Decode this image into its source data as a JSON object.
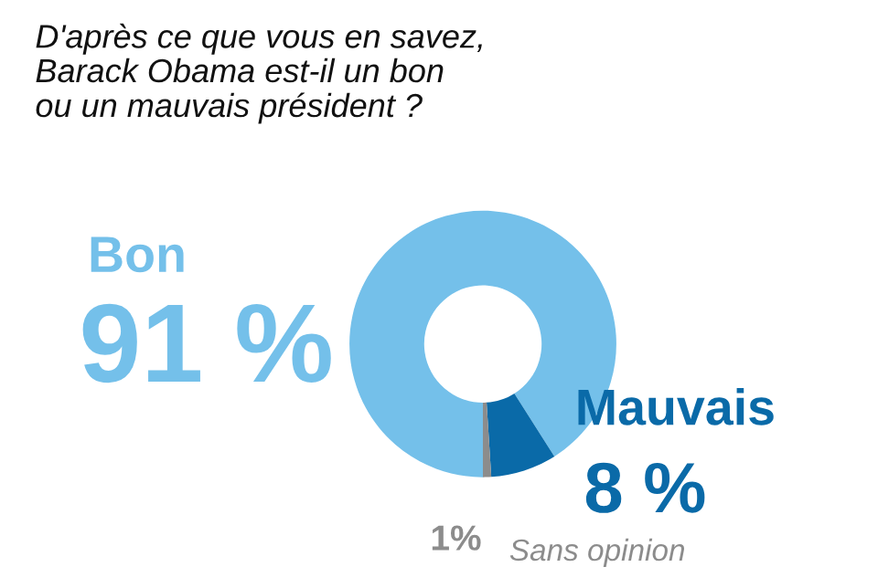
{
  "chart_data": {
    "type": "donut",
    "title": "D'après ce que vous en savez,\nBarack Obama est-il un bon\nou un mauvais président ?",
    "categories": [
      "Bon",
      "Mauvais",
      "Sans opinion"
    ],
    "values": [
      91,
      8,
      1
    ],
    "colors": [
      "#74c0ea",
      "#0a6aa8",
      "#8c8c8c"
    ],
    "value_labels": [
      "91 %",
      "8 %",
      "1%"
    ],
    "legend": false
  }
}
